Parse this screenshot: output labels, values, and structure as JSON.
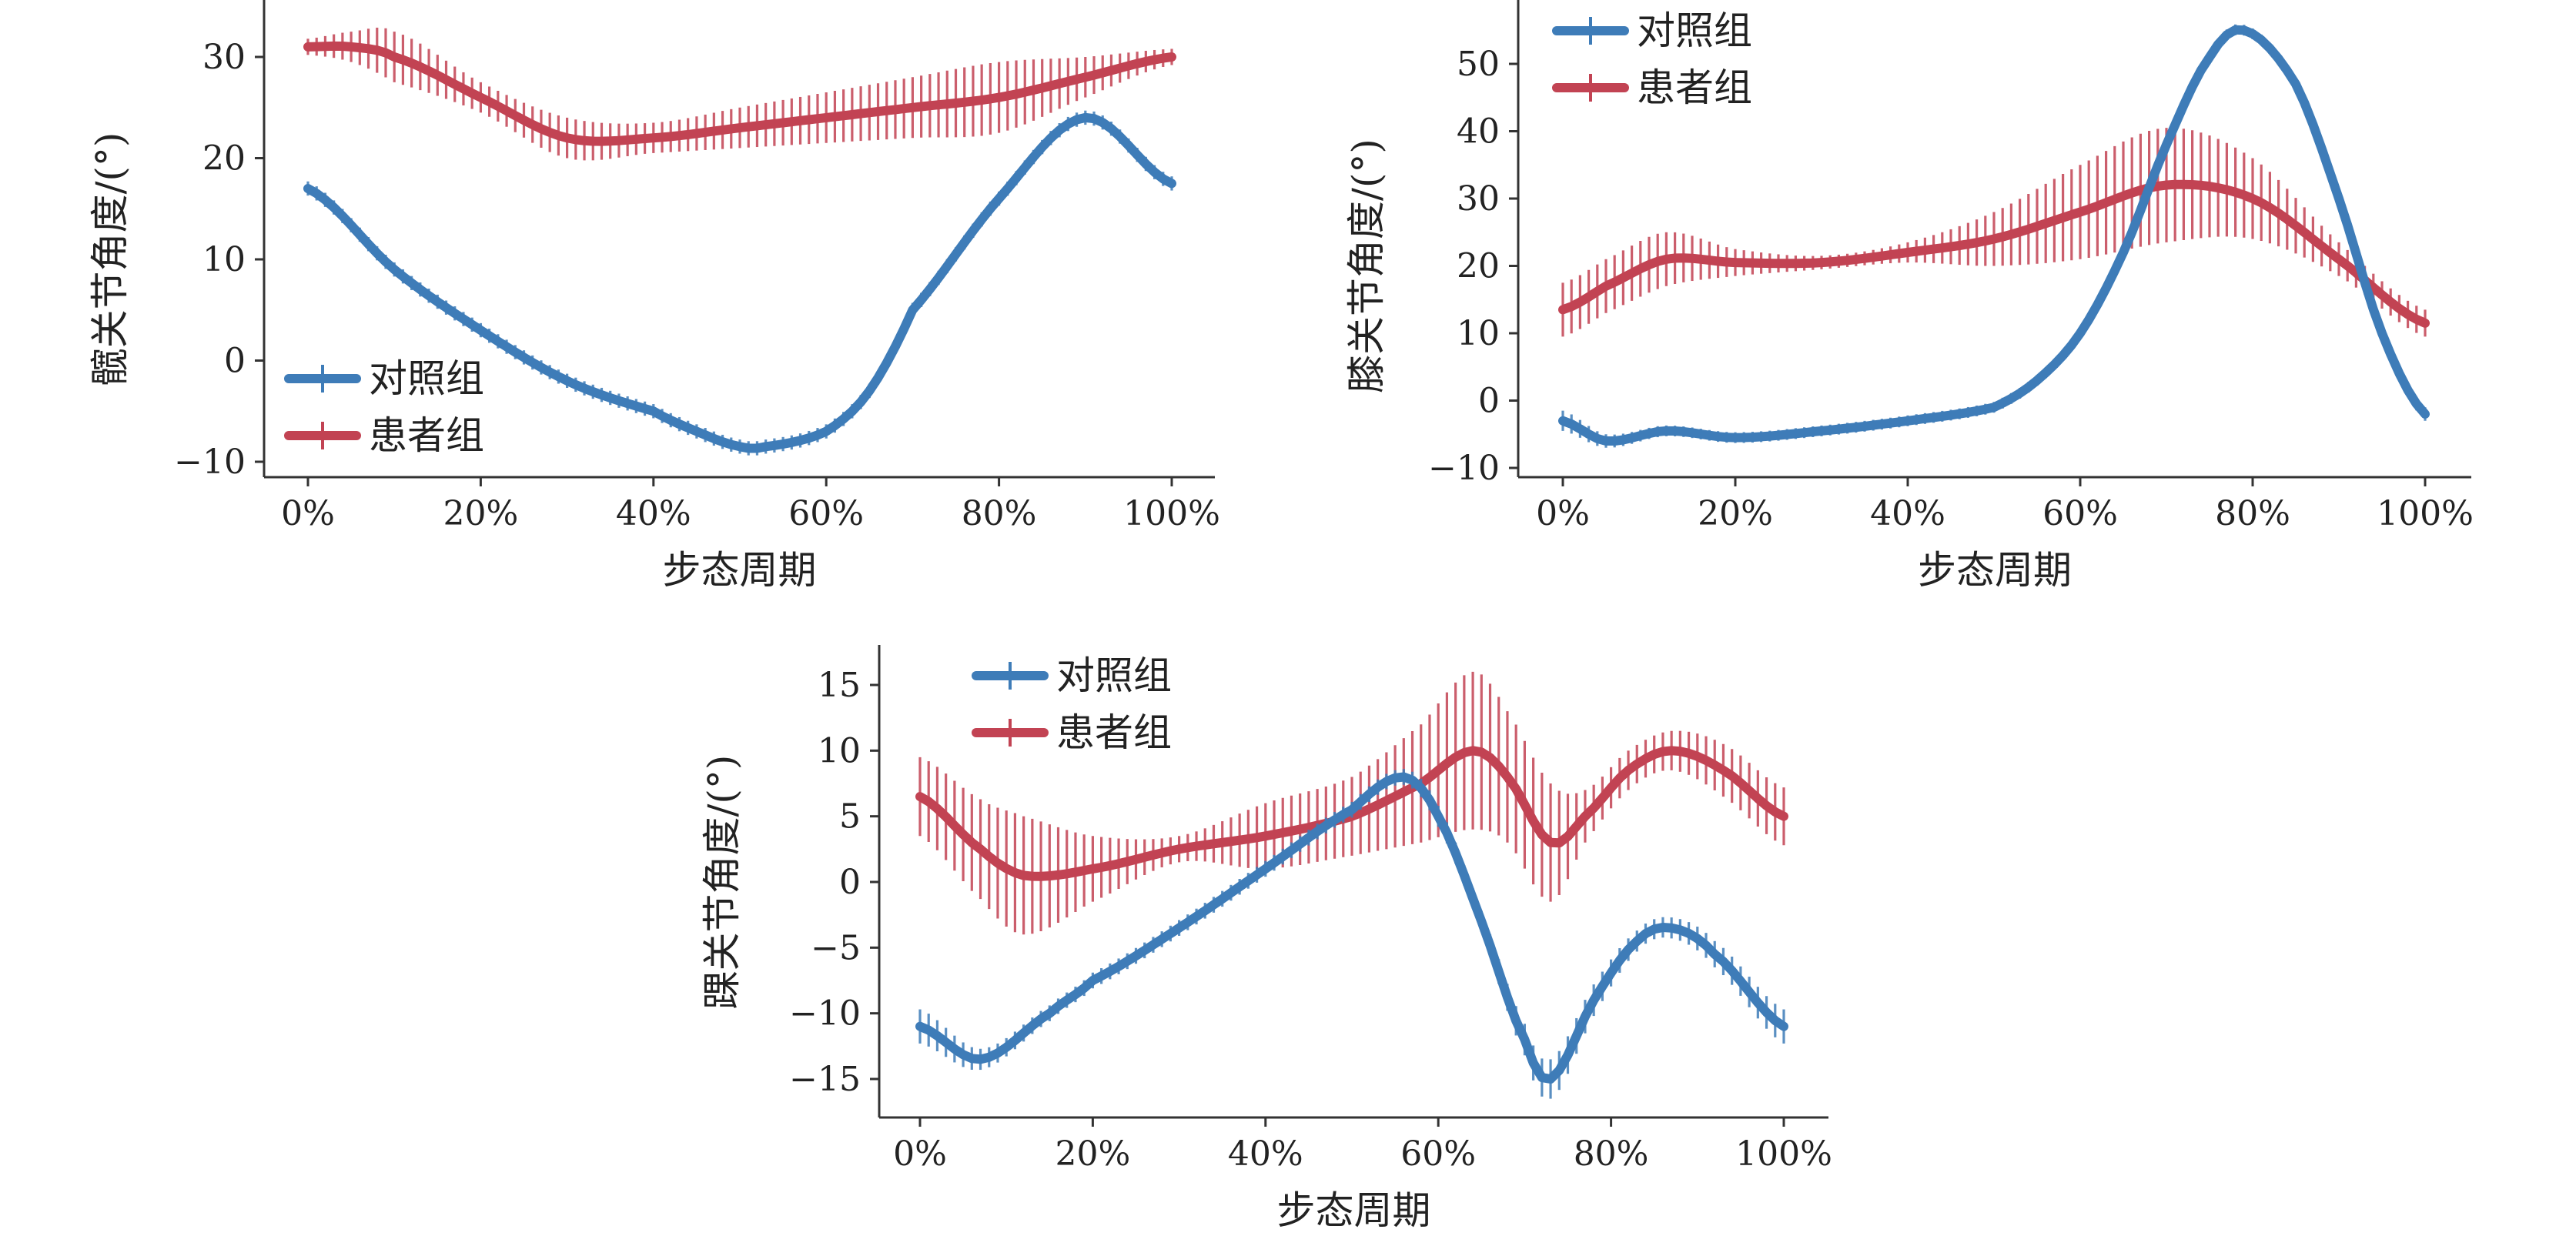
{
  "chart_data": [
    {
      "id": "hip",
      "type": "line",
      "title": "",
      "xlabel": "步态周期",
      "ylabel": "髋关节角度/(°)",
      "xlim": [
        0,
        100
      ],
      "ylim": [
        -10,
        35
      ],
      "xticks": [
        0,
        20,
        40,
        60,
        80,
        100
      ],
      "xtick_labels": [
        "0%",
        "20%",
        "40%",
        "60%",
        "80%",
        "100%"
      ],
      "yticks": [
        -10,
        0,
        10,
        20,
        30
      ],
      "ytick_labels": [
        "−10",
        "0",
        "10",
        "20",
        "30"
      ],
      "legend_position": "bottom-left",
      "grid": false,
      "series": [
        {
          "name": "对照组",
          "color": "#3E7CB8",
          "x": [
            0,
            10,
            20,
            30,
            40,
            45,
            50,
            53,
            60,
            65,
            70,
            80,
            90,
            100
          ],
          "y": [
            17,
            9,
            3,
            -2,
            -5,
            -7,
            -8.5,
            -8.5,
            -7,
            -3,
            5,
            16,
            24,
            17.5
          ],
          "error": [
            0.7,
            0.7,
            0.7,
            0.7,
            0.7,
            0.7,
            0.7,
            0.7,
            0.7,
            0.7,
            0.7,
            0.7,
            0.7,
            0.7
          ]
        },
        {
          "name": "患者组",
          "color": "#C24353",
          "x": [
            0,
            5,
            10,
            20,
            30,
            40,
            50,
            60,
            70,
            80,
            90,
            100
          ],
          "y": [
            31,
            31,
            30,
            26,
            22,
            22,
            23,
            24,
            25,
            26,
            28,
            30
          ],
          "error": [
            0.8,
            1.5,
            2.5,
            1.5,
            2,
            1.5,
            2,
            2.5,
            3,
            3.5,
            2,
            0.8
          ]
        }
      ]
    },
    {
      "id": "knee",
      "type": "line",
      "title": "",
      "xlabel": "步态周期",
      "ylabel": "膝关节角度/(°)",
      "xlim": [
        0,
        100
      ],
      "ylim": [
        -10,
        58
      ],
      "xticks": [
        0,
        20,
        40,
        60,
        80,
        100
      ],
      "xtick_labels": [
        "0%",
        "20%",
        "40%",
        "60%",
        "80%",
        "100%"
      ],
      "yticks": [
        -10,
        0,
        10,
        20,
        30,
        40,
        50
      ],
      "ytick_labels": [
        "−10",
        "0",
        "10",
        "20",
        "30",
        "40",
        "50"
      ],
      "legend_position": "top-left",
      "grid": false,
      "series": [
        {
          "name": "对照组",
          "color": "#3E7CB8",
          "x": [
            0,
            5,
            12,
            20,
            30,
            40,
            50,
            55,
            60,
            65,
            70,
            75,
            79,
            85,
            90,
            95,
            100
          ],
          "y": [
            -3,
            -6,
            -4.5,
            -5.5,
            -4.5,
            -3,
            -1,
            3,
            10,
            22,
            38,
            51,
            55,
            47,
            30,
            10,
            -2
          ],
          "error": [
            1.5,
            1,
            0.8,
            0.8,
            0.8,
            0.8,
            0.8,
            0.8,
            0.8,
            0.8,
            0.8,
            0.8,
            0.8,
            0.8,
            0.8,
            0.8,
            1
          ]
        },
        {
          "name": "患者组",
          "color": "#C24353",
          "x": [
            0,
            5,
            12,
            20,
            30,
            40,
            50,
            60,
            70,
            80,
            90,
            100
          ],
          "y": [
            13.5,
            17,
            21,
            20.5,
            20.5,
            22,
            24,
            28,
            32,
            30,
            21,
            11.5
          ],
          "error": [
            4,
            4,
            4,
            2,
            1,
            1.5,
            4,
            7,
            8.5,
            6,
            2.5,
            2
          ]
        }
      ]
    },
    {
      "id": "ankle",
      "type": "line",
      "title": "",
      "xlabel": "步态周期",
      "ylabel": "踝关节角度/(°)",
      "xlim": [
        0,
        100
      ],
      "ylim": [
        -18,
        18
      ],
      "xticks": [
        0,
        20,
        40,
        60,
        80,
        100
      ],
      "xtick_labels": [
        "0%",
        "20%",
        "40%",
        "60%",
        "80%",
        "100%"
      ],
      "yticks": [
        -15,
        -10,
        -5,
        0,
        5,
        10,
        15
      ],
      "ytick_labels": [
        "−15",
        "−10",
        "−5",
        "0",
        "5",
        "10",
        "15"
      ],
      "legend_position": "top-left",
      "grid": false,
      "series": [
        {
          "name": "对照组",
          "color": "#3E7CB8",
          "x": [
            0,
            7,
            15,
            20,
            30,
            40,
            50,
            56,
            60,
            65,
            70,
            73,
            78,
            83,
            87,
            92,
            100
          ],
          "y": [
            -11,
            -13.5,
            -10,
            -7.5,
            -3.5,
            1,
            5.5,
            8,
            5,
            -3,
            -12,
            -15,
            -9,
            -4.5,
            -3.5,
            -5.5,
            -11
          ],
          "error": [
            1.3,
            0.8,
            0.6,
            0.6,
            0.6,
            0.6,
            0.6,
            0.6,
            0.8,
            0.8,
            1.2,
            1.5,
            1.2,
            0.8,
            0.8,
            1,
            1.3
          ]
        },
        {
          "name": "患者组",
          "color": "#C24353",
          "x": [
            0,
            7,
            12,
            20,
            30,
            40,
            50,
            58,
            64,
            68,
            73,
            77,
            82,
            87,
            93,
            100
          ],
          "y": [
            6.5,
            2.5,
            0.5,
            1,
            2.5,
            3.5,
            5,
            7.5,
            10,
            8,
            3,
            5,
            8.5,
            10,
            8.5,
            5
          ],
          "error": [
            3,
            3.8,
            4.5,
            2.5,
            1,
            2.5,
            3,
            4.5,
            6,
            5,
            4.5,
            2,
            1.5,
            1.5,
            2,
            2.2
          ]
        }
      ]
    }
  ]
}
